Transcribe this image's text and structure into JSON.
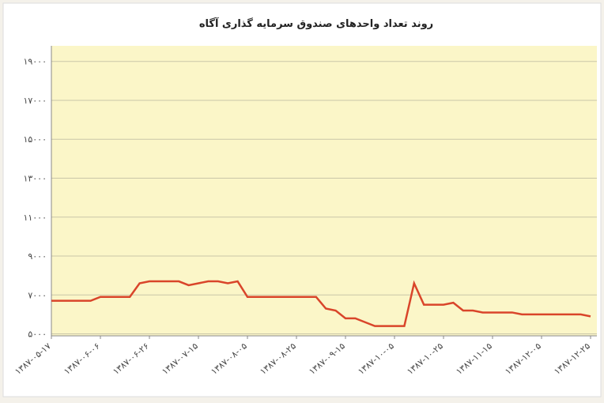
{
  "chart_data": {
    "type": "line",
    "title": "روند تعداد واحدهای صندوق سرمایه گذاری آگاه",
    "categories": [
      "۱۳۸۷-۰۵-۱۷",
      null,
      null,
      null,
      null,
      "۱۳۸۷-۰۶-۰۶",
      null,
      null,
      null,
      null,
      "۱۳۸۷-۰۶-۲۶",
      null,
      null,
      null,
      null,
      "۱۳۸۷-۰۷-۱۵",
      null,
      null,
      null,
      null,
      "۱۳۸۷-۰۸-۰۵",
      null,
      null,
      null,
      null,
      "۱۳۸۷-۰۸-۲۵",
      null,
      null,
      null,
      null,
      "۱۳۸۷-۰۹-۱۵",
      null,
      null,
      null,
      null,
      "۱۳۸۷-۱۰-۰۵",
      null,
      null,
      null,
      null,
      "۱۳۸۷-۱۰-۲۵",
      null,
      null,
      null,
      null,
      "۱۳۸۷-۱۱-۱۵",
      null,
      null,
      null,
      null,
      "۱۳۸۷-۱۲-۰۵",
      null,
      null,
      null,
      null,
      "۱۳۸۷-۱۲-۲۵"
    ],
    "series": [
      {
        "color": "#d9452a",
        "values": [
          6700,
          6700,
          6700,
          6700,
          6700,
          6900,
          6900,
          6900,
          6900,
          7600,
          7700,
          7700,
          7700,
          7700,
          7500,
          7600,
          7700,
          7700,
          7600,
          7700,
          6900,
          6900,
          6900,
          6900,
          6900,
          6900,
          6900,
          6900,
          6300,
          6200,
          5800,
          5800,
          5600,
          5400,
          5400,
          5400,
          5400,
          7600,
          6500,
          6500,
          6500,
          6600,
          6200,
          6200,
          6100,
          6100,
          6100,
          6100,
          6000,
          6000,
          6000,
          6000,
          6000,
          6000,
          6000,
          5900
        ]
      }
    ],
    "ylim": [
      4900,
      19800
    ],
    "yticks": [
      {
        "value": 5000,
        "label": "۵۰۰۰"
      },
      {
        "value": 7000,
        "label": "۷۰۰۰"
      },
      {
        "value": 9000,
        "label": "۹۰۰۰"
      },
      {
        "value": 11000,
        "label": "۱۱۰۰۰"
      },
      {
        "value": 13000,
        "label": "۱۳۰۰۰"
      },
      {
        "value": 15000,
        "label": "۱۵۰۰۰"
      },
      {
        "value": 17000,
        "label": "۱۷۰۰۰"
      },
      {
        "value": 19000,
        "label": "۱۹۰۰۰"
      }
    ],
    "grid": true,
    "background": "#fbf6c8"
  }
}
